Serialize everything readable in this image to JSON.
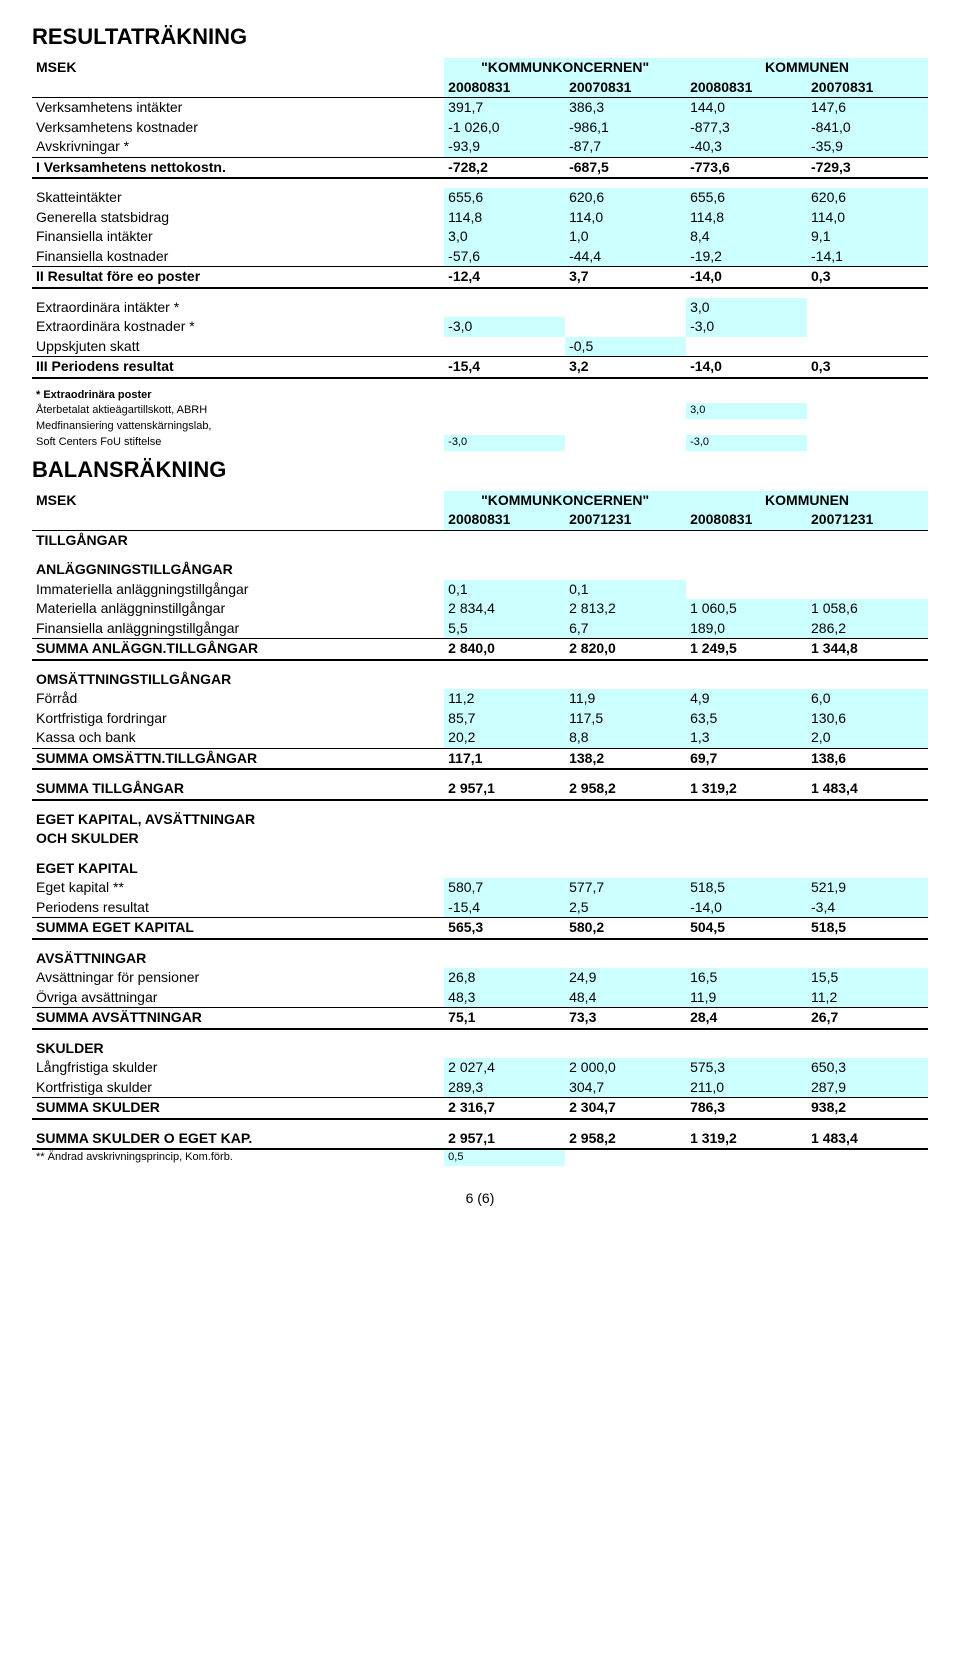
{
  "res": {
    "title": "RESULTATRÄKNING",
    "hdr": {
      "msek": "MSEK",
      "grp1": "\"KOMMUNKONCERNEN\"",
      "grp2": "KOMMUNEN",
      "c1": "20080831",
      "c2": "20070831",
      "c3": "20080831",
      "c4": "20070831"
    },
    "rows": [
      {
        "l": "Verksamhetens intäkter",
        "v": [
          "391,7",
          "386,3",
          "144,0",
          "147,6"
        ],
        "hl": true
      },
      {
        "l": "Verksamhetens kostnader",
        "v": [
          "-1 026,0",
          "-986,1",
          "-877,3",
          "-841,0"
        ],
        "hl": true
      },
      {
        "l": "Avskrivningar *",
        "v": [
          "-93,9",
          "-87,7",
          "-40,3",
          "-35,9"
        ],
        "hl": true,
        "line": true
      },
      {
        "l": "I Verksamhetens nettokostn.",
        "v": [
          "-728,2",
          "-687,5",
          "-773,6",
          "-729,3"
        ],
        "bold": true,
        "thick": true
      }
    ],
    "rows2": [
      {
        "l": "Skatteintäkter",
        "v": [
          "655,6",
          "620,6",
          "655,6",
          "620,6"
        ],
        "hl": true
      },
      {
        "l": "Generella statsbidrag",
        "v": [
          "114,8",
          "114,0",
          "114,8",
          "114,0"
        ],
        "hl": true
      },
      {
        "l": "Finansiella intäkter",
        "v": [
          "3,0",
          "1,0",
          "8,4",
          "9,1"
        ],
        "hl": true
      },
      {
        "l": "Finansiella kostnader",
        "v": [
          "-57,6",
          "-44,4",
          "-19,2",
          "-14,1"
        ],
        "hl": true,
        "line": true
      },
      {
        "l": "II Resultat före eo poster",
        "v": [
          "-12,4",
          "3,7",
          "-14,0",
          "0,3"
        ],
        "bold": true,
        "thick": true
      }
    ],
    "rows3": [
      {
        "l": "Extraordinära intäkter *",
        "v": [
          "",
          "",
          "3,0",
          ""
        ],
        "hl": true
      },
      {
        "l": "Extraordinära kostnader *",
        "v": [
          "-3,0",
          "",
          "-3,0",
          ""
        ],
        "hl": true
      },
      {
        "l": "Uppskjuten skatt",
        "v": [
          "",
          "-0,5",
          "",
          ""
        ],
        "hl": true,
        "line": true
      },
      {
        "l": "III Periodens resultat",
        "v": [
          "-15,4",
          "3,2",
          "-14,0",
          "0,3"
        ],
        "bold": true,
        "thick": true
      }
    ],
    "notes": [
      {
        "l": "* Extraodrinära poster",
        "v": [
          "",
          "",
          "",
          ""
        ],
        "bold": true,
        "small": true
      },
      {
        "l": "Återbetalat aktieägartillskott, ABRH",
        "v": [
          "",
          "",
          "3,0",
          ""
        ],
        "small": true,
        "hl": true
      },
      {
        "l": "Medfinansiering vattenskärningslab,",
        "v": [
          "",
          "",
          "",
          ""
        ],
        "small": true
      },
      {
        "l": "Soft Centers FoU stiftelse",
        "v": [
          "-3,0",
          "",
          "-3,0",
          ""
        ],
        "small": true,
        "hl": true
      }
    ]
  },
  "bal": {
    "title": "BALANSRÄKNING",
    "hdr": {
      "msek": "MSEK",
      "grp1": "\"KOMMUNKONCERNEN\"",
      "grp2": "KOMMUNEN",
      "c1": "20080831",
      "c2": "20071231",
      "c3": "20080831",
      "c4": "20071231"
    },
    "tillgangar": "TILLGÅNGAR",
    "sec_anl": "ANLÄGGNINGSTILLGÅNGAR",
    "anl": [
      {
        "l": "Immateriella anläggningstillgångar",
        "v": [
          "0,1",
          "0,1",
          "",
          ""
        ],
        "hl": true
      },
      {
        "l": "Materiella anläggninstillgångar",
        "v": [
          "2 834,4",
          "2 813,2",
          "1 060,5",
          "1 058,6"
        ],
        "hl": true
      },
      {
        "l": "Finansiella anläggningstillgångar",
        "v": [
          "5,5",
          "6,7",
          "189,0",
          "286,2"
        ],
        "hl": true,
        "line": true
      },
      {
        "l": "SUMMA ANLÄGGN.TILLGÅNGAR",
        "v": [
          "2 840,0",
          "2 820,0",
          "1 249,5",
          "1 344,8"
        ],
        "bold": true,
        "thick": true
      }
    ],
    "sec_oms": "OMSÄTTNINGSTILLGÅNGAR",
    "oms": [
      {
        "l": "Förråd",
        "v": [
          "11,2",
          "11,9",
          "4,9",
          "6,0"
        ],
        "hl": true
      },
      {
        "l": "Kortfristiga fordringar",
        "v": [
          "85,7",
          "117,5",
          "63,5",
          "130,6"
        ],
        "hl": true
      },
      {
        "l": "Kassa och bank",
        "v": [
          "20,2",
          "8,8",
          "1,3",
          "2,0"
        ],
        "hl": true,
        "line": true
      },
      {
        "l": "SUMMA OMSÄTTN.TILLGÅNGAR",
        "v": [
          "117,1",
          "138,2",
          "69,7",
          "138,6"
        ],
        "bold": true,
        "thick": true
      }
    ],
    "sum_tillg": {
      "l": "SUMMA TILLGÅNGAR",
      "v": [
        "2 957,1",
        "2 958,2",
        "1 319,2",
        "1 483,4"
      ],
      "bold": true,
      "thick": true
    },
    "sec_eks1": "EGET KAPITAL, AVSÄTTNINGAR",
    "sec_eks2": "OCH SKULDER",
    "sec_ek": "EGET KAPITAL",
    "ek": [
      {
        "l": "Eget kapital **",
        "v": [
          "580,7",
          "577,7",
          "518,5",
          "521,9"
        ],
        "hl": true
      },
      {
        "l": "Periodens resultat",
        "v": [
          "-15,4",
          "2,5",
          "-14,0",
          "-3,4"
        ],
        "hl": true,
        "line": true
      },
      {
        "l": "SUMMA EGET KAPITAL",
        "v": [
          "565,3",
          "580,2",
          "504,5",
          "518,5"
        ],
        "bold": true,
        "thick": true
      }
    ],
    "sec_avs": "AVSÄTTNINGAR",
    "avs": [
      {
        "l": "Avsättningar för pensioner",
        "v": [
          "26,8",
          "24,9",
          "16,5",
          "15,5"
        ],
        "hl": true
      },
      {
        "l": "Övriga avsättningar",
        "v": [
          "48,3",
          "48,4",
          "11,9",
          "11,2"
        ],
        "hl": true,
        "line": true
      },
      {
        "l": "SUMMA AVSÄTTNINGAR",
        "v": [
          "75,1",
          "73,3",
          "28,4",
          "26,7"
        ],
        "bold": true,
        "thick": true
      }
    ],
    "sec_sku": "SKULDER",
    "sku": [
      {
        "l": "Långfristiga skulder",
        "v": [
          "2 027,4",
          "2 000,0",
          "575,3",
          "650,3"
        ],
        "hl": true
      },
      {
        "l": "Kortfristiga skulder",
        "v": [
          "289,3",
          "304,7",
          "211,0",
          "287,9"
        ],
        "hl": true,
        "line": true
      },
      {
        "l": "SUMMA SKULDER",
        "v": [
          "2 316,7",
          "2 304,7",
          "786,3",
          "938,2"
        ],
        "bold": true,
        "thick": true
      }
    ],
    "sum_all": {
      "l": "SUMMA SKULDER O EGET KAP.",
      "v": [
        "2 957,1",
        "2 958,2",
        "1 319,2",
        "1 483,4"
      ],
      "bold": true,
      "thick": true
    },
    "footnote": {
      "l": "** Ändrad avskrivningsprincip, Kom.förb.",
      "v": [
        "0,5",
        "",
        "",
        ""
      ],
      "small": true,
      "hl": true
    }
  },
  "pagefoot": "6 (6)",
  "colors": {
    "highlight": "#ccffff",
    "text": "#000000",
    "bg": "#ffffff"
  }
}
